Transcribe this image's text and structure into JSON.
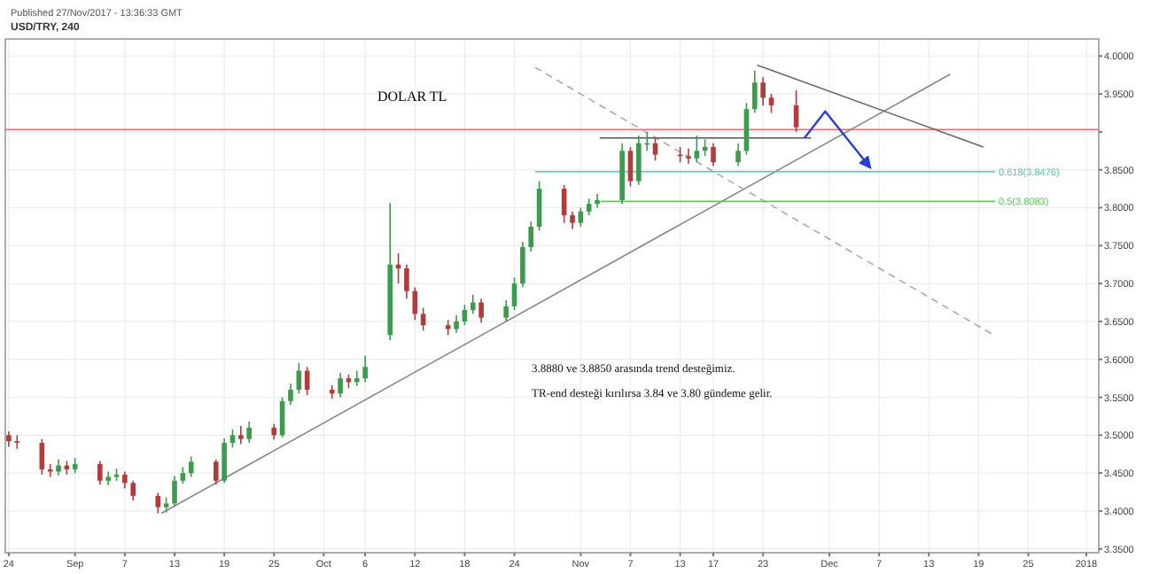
{
  "chart_data": {
    "type": "candlestick",
    "title": "DOLAR TL",
    "subtitle": "USD/TRY, 240",
    "annotations": [
      "Published 27/Nov/2017 - 13:36:33 GMT",
      "3.8880 ve 3.8850 arasında trend desteğimiz.",
      "TR-end desteği kırılırsa 3.84 ve 3.80 gündeme gelir.",
      {
        "text": "0.618(3.8476)",
        "x": "2017-12-21",
        "y": 3.8476
      },
      {
        "text": "0.5(3.8083)",
        "x": "2017-12-21",
        "y": 3.8083
      }
    ],
    "x": [
      "2017-08-24",
      "2017-08-25",
      "2017-08-28",
      "2017-08-29",
      "2017-08-30",
      "2017-08-31",
      "2017-09-01",
      "2017-09-04",
      "2017-09-05",
      "2017-09-06",
      "2017-09-07",
      "2017-09-08",
      "2017-09-11",
      "2017-09-12",
      "2017-09-13",
      "2017-09-14",
      "2017-09-15",
      "2017-09-18",
      "2017-09-19",
      "2017-09-20",
      "2017-09-21",
      "2017-09-22",
      "2017-09-25",
      "2017-09-26",
      "2017-09-27",
      "2017-09-28",
      "2017-09-29",
      "2017-10-02",
      "2017-10-03",
      "2017-10-04",
      "2017-10-05",
      "2017-10-06",
      "2017-10-09",
      "2017-10-10",
      "2017-10-11",
      "2017-10-12",
      "2017-10-13",
      "2017-10-16",
      "2017-10-17",
      "2017-10-18",
      "2017-10-19",
      "2017-10-20",
      "2017-10-23",
      "2017-10-24",
      "2017-10-25",
      "2017-10-26",
      "2017-10-27",
      "2017-10-30",
      "2017-10-31",
      "2017-11-01",
      "2017-11-02",
      "2017-11-03",
      "2017-11-06",
      "2017-11-07",
      "2017-11-08",
      "2017-11-09",
      "2017-11-10",
      "2017-11-13",
      "2017-11-14",
      "2017-11-15",
      "2017-11-16",
      "2017-11-17",
      "2017-11-20",
      "2017-11-21",
      "2017-11-22",
      "2017-11-23",
      "2017-11-24",
      "2017-11-27"
    ],
    "ohlc": [
      [
        3.5,
        3.505,
        3.485,
        3.492
      ],
      [
        3.492,
        3.5,
        3.482,
        3.49
      ],
      [
        3.49,
        3.495,
        3.448,
        3.455
      ],
      [
        3.455,
        3.462,
        3.445,
        3.452
      ],
      [
        3.452,
        3.468,
        3.447,
        3.46
      ],
      [
        3.46,
        3.466,
        3.448,
        3.455
      ],
      [
        3.455,
        3.47,
        3.45,
        3.462
      ],
      [
        3.462,
        3.466,
        3.435,
        3.44
      ],
      [
        3.44,
        3.452,
        3.434,
        3.445
      ],
      [
        3.445,
        3.456,
        3.44,
        3.448
      ],
      [
        3.448,
        3.452,
        3.43,
        3.437
      ],
      [
        3.437,
        3.44,
        3.414,
        3.42
      ],
      [
        3.42,
        3.424,
        3.397,
        3.405
      ],
      [
        3.405,
        3.418,
        3.398,
        3.41
      ],
      [
        3.41,
        3.446,
        3.406,
        3.44
      ],
      [
        3.44,
        3.458,
        3.436,
        3.45
      ],
      [
        3.45,
        3.472,
        3.445,
        3.465
      ],
      [
        3.465,
        3.468,
        3.435,
        3.44
      ],
      [
        3.44,
        3.496,
        3.437,
        3.49
      ],
      [
        3.49,
        3.508,
        3.484,
        3.5
      ],
      [
        3.5,
        3.512,
        3.488,
        3.495
      ],
      [
        3.495,
        3.518,
        3.49,
        3.51
      ],
      [
        3.51,
        3.515,
        3.494,
        3.5
      ],
      [
        3.5,
        3.55,
        3.497,
        3.545
      ],
      [
        3.545,
        3.568,
        3.54,
        3.56
      ],
      [
        3.56,
        3.595,
        3.555,
        3.585
      ],
      [
        3.585,
        3.59,
        3.553,
        3.56
      ],
      [
        3.56,
        3.566,
        3.548,
        3.555
      ],
      [
        3.555,
        3.582,
        3.55,
        3.575
      ],
      [
        3.575,
        3.58,
        3.562,
        3.57
      ],
      [
        3.57,
        3.585,
        3.565,
        3.575
      ],
      [
        3.575,
        3.605,
        3.57,
        3.59
      ],
      [
        3.632,
        3.806,
        3.625,
        3.725
      ],
      [
        3.725,
        3.74,
        3.7,
        3.72
      ],
      [
        3.72,
        3.725,
        3.68,
        3.69
      ],
      [
        3.69,
        3.695,
        3.652,
        3.66
      ],
      [
        3.66,
        3.668,
        3.638,
        3.645
      ],
      [
        3.645,
        3.652,
        3.632,
        3.64
      ],
      [
        3.64,
        3.658,
        3.635,
        3.65
      ],
      [
        3.65,
        3.672,
        3.645,
        3.665
      ],
      [
        3.665,
        3.685,
        3.66,
        3.675
      ],
      [
        3.675,
        3.68,
        3.648,
        3.655
      ],
      [
        3.655,
        3.678,
        3.65,
        3.67
      ],
      [
        3.67,
        3.708,
        3.665,
        3.7
      ],
      [
        3.7,
        3.755,
        3.695,
        3.748
      ],
      [
        3.748,
        3.782,
        3.742,
        3.775
      ],
      [
        3.775,
        3.835,
        3.77,
        3.825
      ],
      [
        3.825,
        3.83,
        3.78,
        3.79
      ],
      [
        3.79,
        3.795,
        3.772,
        3.78
      ],
      [
        3.78,
        3.8,
        3.775,
        3.795
      ],
      [
        3.795,
        3.812,
        3.79,
        3.805
      ],
      [
        3.805,
        3.818,
        3.8,
        3.81
      ],
      [
        3.81,
        3.885,
        3.805,
        3.875
      ],
      [
        3.875,
        3.88,
        3.828,
        3.835
      ],
      [
        3.835,
        3.895,
        3.83,
        3.885
      ],
      [
        3.885,
        3.9,
        3.875,
        3.885
      ],
      [
        3.885,
        3.893,
        3.862,
        3.87
      ],
      [
        3.87,
        3.88,
        3.86,
        3.868
      ],
      [
        3.868,
        3.878,
        3.858,
        3.865
      ],
      [
        3.865,
        3.895,
        3.86,
        3.875
      ],
      [
        3.875,
        3.89,
        3.868,
        3.88
      ],
      [
        3.88,
        3.885,
        3.855,
        3.86
      ],
      [
        3.86,
        3.885,
        3.855,
        3.875
      ],
      [
        3.875,
        3.938,
        3.87,
        3.93
      ],
      [
        3.93,
        3.981,
        3.925,
        3.965
      ],
      [
        3.965,
        3.972,
        3.935,
        3.945
      ],
      [
        3.945,
        3.95,
        3.925,
        3.935
      ],
      [
        3.935,
        3.955,
        3.9,
        3.906
      ]
    ],
    "colors": [
      "#b23b3b",
      "#b23b3b",
      "#b23b3b",
      "#b23b3b",
      "#3d9b4e",
      "#b23b3b",
      "#3d9b4e",
      "#b23b3b",
      "#3d9b4e",
      "#3d9b4e",
      "#b23b3b",
      "#b23b3b",
      "#b23b3b",
      "#3d9b4e",
      "#3d9b4e",
      "#3d9b4e",
      "#3d9b4e",
      "#b23b3b",
      "#3d9b4e",
      "#3d9b4e",
      "#b23b3b",
      "#3d9b4e",
      "#b23b3b",
      "#3d9b4e",
      "#3d9b4e",
      "#3d9b4e",
      "#b23b3b",
      "#b23b3b",
      "#3d9b4e",
      "#b23b3b",
      "#3d9b4e",
      "#3d9b4e",
      "#3d9b4e",
      "#b23b3b",
      "#b23b3b",
      "#b23b3b",
      "#b23b3b",
      "#b23b3b",
      "#3d9b4e",
      "#3d9b4e",
      "#3d9b4e",
      "#b23b3b",
      "#3d9b4e",
      "#3d9b4e",
      "#3d9b4e",
      "#3d9b4e",
      "#3d9b4e",
      "#b23b3b",
      "#b23b3b",
      "#3d9b4e",
      "#3d9b4e",
      "#3d9b4e",
      "#3d9b4e",
      "#b23b3b",
      "#3d9b4e",
      "#3d9b4e",
      "#b23b3b",
      "#b23b3b",
      "#b23b3b",
      "#3d9b4e",
      "#3d9b4e",
      "#b23b3b",
      "#3d9b4e",
      "#3d9b4e",
      "#3d9b4e",
      "#b23b3b",
      "#b23b3b",
      "#b23b3b"
    ],
    "series": [
      {
        "type": "line",
        "color": "#888888",
        "x": [
          "2017-09-11T10:00",
          "2017-12-15T14:00"
        ],
        "values": [
          3.397,
          3.976
        ]
      },
      {
        "type": "line",
        "color": "#666666",
        "x": [
          "2017-11-22T07:00",
          "2017-12-19T14:00"
        ],
        "values": [
          3.988,
          3.88
        ]
      },
      {
        "type": "line",
        "color": "#aaaaaa",
        "line_style": "dashed",
        "x": [
          "2017-10-26T12:00",
          "2017-12-21"
        ],
        "values": [
          3.985,
          3.631
        ]
      },
      {
        "type": "line",
        "color": "#555555",
        "x": [
          "2017-11-03T07:00",
          "2017-11-28T19:00"
        ],
        "values": [
          3.892,
          3.892
        ]
      },
      {
        "type": "line",
        "color": "#4fc9b0",
        "x": [
          "2017-10-26T12:00",
          "2017-12-21"
        ],
        "values": [
          3.8476,
          3.8476
        ]
      },
      {
        "type": "line",
        "color": "#5cc85c",
        "x": [
          "2017-11-03T10:00",
          "2017-12-21"
        ],
        "values": [
          3.8083,
          3.8083
        ]
      },
      {
        "type": "line",
        "color": "#2a3fcf",
        "x": [
          "2017-11-28",
          "2017-11-30T12:00",
          "2017-12-05T22:00"
        ],
        "values": [
          3.892,
          3.927,
          3.853
        ]
      }
    ],
    "ref_lines": [
      {
        "axis": "y",
        "value": 3.903,
        "color": "#e07070"
      }
    ],
    "xlim": [
      "2017-08-23T14:00",
      "2018-01-02T12:00"
    ],
    "xticks": [
      {
        "value": "2017-08-24",
        "label": "24"
      },
      {
        "value": "2017-09-01",
        "label": "Sep"
      },
      {
        "value": "2017-09-07",
        "label": "7"
      },
      {
        "value": "2017-09-13",
        "label": "13"
      },
      {
        "value": "2017-09-19",
        "label": "19"
      },
      {
        "value": "2017-09-25",
        "label": "25"
      },
      {
        "value": "2017-10-01",
        "label": "Oct"
      },
      {
        "value": "2017-10-06",
        "label": "6"
      },
      {
        "value": "2017-10-12",
        "label": "12"
      },
      {
        "value": "2017-10-18",
        "label": "18"
      },
      {
        "value": "2017-10-24",
        "label": "24"
      },
      {
        "value": "2017-11-01",
        "label": "Nov"
      },
      {
        "value": "2017-11-07",
        "label": "7"
      },
      {
        "value": "2017-11-13",
        "label": "13"
      },
      {
        "value": "2017-11-17",
        "label": "17"
      },
      {
        "value": "2017-11-23",
        "label": "23"
      },
      {
        "value": "2017-12-01",
        "label": "Dec"
      },
      {
        "value": "2017-12-07",
        "label": "7"
      },
      {
        "value": "2017-12-13",
        "label": "13"
      },
      {
        "value": "2017-12-19",
        "label": "19"
      },
      {
        "value": "2017-12-25",
        "label": "25"
      },
      {
        "value": "2018-01-01",
        "label": "2018"
      }
    ],
    "ylim": [
      3.345,
      4.0225
    ],
    "yticks": [
      {
        "value": 4.0,
        "label": "4.0000"
      },
      {
        "value": 3.95,
        "label": "3.9500"
      },
      {
        "value": 3.9,
        "label": null
      },
      {
        "value": 3.85,
        "label": "3.8500"
      },
      {
        "value": 3.8,
        "label": "3.8000"
      },
      {
        "value": 3.75,
        "label": "3.7500"
      },
      {
        "value": 3.7,
        "label": "3.7000"
      },
      {
        "value": 3.65,
        "label": "3.6500"
      },
      {
        "value": 3.6,
        "label": "3.6000"
      },
      {
        "value": 3.55,
        "label": "3.5500"
      },
      {
        "value": 3.5,
        "label": "3.5000"
      },
      {
        "value": 3.45,
        "label": "3.4500"
      },
      {
        "value": 3.4,
        "label": "3.4000"
      },
      {
        "value": 3.35,
        "label": "3.3500"
      }
    ],
    "grid": true
  }
}
